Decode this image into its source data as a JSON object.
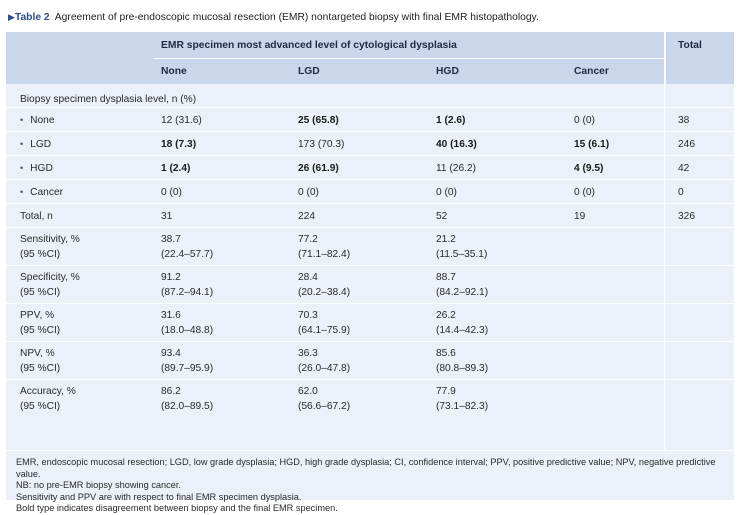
{
  "caption": {
    "marker": "▶",
    "label": "Table 2",
    "text": "Agreement of pre-endoscopic mucosal resection (EMR) nontargeted biopsy with final EMR histopathology."
  },
  "header": {
    "group_title": "EMR specimen most advanced level of cytological dysplasia",
    "total": "Total",
    "columns": [
      "None",
      "LGD",
      "HGD",
      "Cancer"
    ]
  },
  "section_label": "Biopsy specimen dysplasia level, n (%)",
  "rows": [
    {
      "label": "None",
      "bullet": true,
      "cells": [
        {
          "t": "12 (31.6)",
          "b": false
        },
        {
          "t": "25 (65.8)",
          "b": true
        },
        {
          "t": "1 (2.6)",
          "b": true
        },
        {
          "t": "0 (0)",
          "b": false
        },
        {
          "t": "38",
          "b": false
        }
      ]
    },
    {
      "label": "LGD",
      "bullet": true,
      "cells": [
        {
          "t": "18 (7.3)",
          "b": true
        },
        {
          "t": "173 (70.3)",
          "b": false
        },
        {
          "t": "40 (16.3)",
          "b": true
        },
        {
          "t": "15 (6.1)",
          "b": true
        },
        {
          "t": "246",
          "b": false
        }
      ]
    },
    {
      "label": "HGD",
      "bullet": true,
      "cells": [
        {
          "t": "1 (2.4)",
          "b": true
        },
        {
          "t": "26 (61.9)",
          "b": true
        },
        {
          "t": "11 (26.2)",
          "b": false
        },
        {
          "t": "4 (9.5)",
          "b": true
        },
        {
          "t": "42",
          "b": false
        }
      ]
    },
    {
      "label": "Cancer",
      "bullet": true,
      "cells": [
        {
          "t": "0 (0)",
          "b": false
        },
        {
          "t": "0 (0)",
          "b": false
        },
        {
          "t": "0 (0)",
          "b": false
        },
        {
          "t": "0 (0)",
          "b": false
        },
        {
          "t": "0",
          "b": false
        }
      ]
    },
    {
      "label": "Total, n",
      "bullet": false,
      "cells": [
        {
          "t": "31",
          "b": false
        },
        {
          "t": "224",
          "b": false
        },
        {
          "t": "52",
          "b": false
        },
        {
          "t": "19",
          "b": false
        },
        {
          "t": "326",
          "b": false
        }
      ]
    }
  ],
  "metrics": [
    {
      "label": "Sensitivity, %",
      "sub": "(95 %CI)",
      "values": [
        "38.7",
        "77.2",
        "21.2"
      ],
      "ci": [
        "(22.4–57.7)",
        "(71.1–82.4)",
        "(11.5–35.1)"
      ]
    },
    {
      "label": "Specificity, %",
      "sub": "(95 %CI)",
      "values": [
        "91.2",
        "28.4",
        "88.7"
      ],
      "ci": [
        "(87.2–94.1)",
        "(20.2–38.4)",
        "(84.2–92.1)"
      ]
    },
    {
      "label": "PPV, %",
      "sub": "(95 %CI)",
      "values": [
        "31.6",
        "70.3",
        "26.2"
      ],
      "ci": [
        "(18.0–48.8)",
        "(64.1–75.9)",
        "(14.4–42.3)"
      ]
    },
    {
      "label": "NPV, %",
      "sub": "(95 %CI)",
      "values": [
        "93.4",
        "36.3",
        "85.6"
      ],
      "ci": [
        "(89.7–95.9)",
        "(26.0–47.8)",
        "(80.8–89.3)"
      ]
    },
    {
      "label": "Accuracy, %",
      "sub": "(95 %CI)",
      "values": [
        "86.2",
        "62.0",
        "77.9"
      ],
      "ci": [
        "(82.0–89.5)",
        "(56.6–67.2)",
        "(73.1–82.3)"
      ]
    }
  ],
  "footnotes": [
    "EMR, endoscopic mucosal resection; LGD, low grade dysplasia; HGD, high grade dysplasia; CI, confidence interval; PPV, positive predictive value; NPV, negative predictive value.",
    "NB: no pre-EMR biopsy showing cancer.",
    "Sensitivity and PPV are with respect to final EMR specimen dysplasia.",
    "Bold type indicates disagreement between biopsy and the final EMR specimen."
  ],
  "colors": {
    "header_bg": "#cad6eb",
    "body_bg": "#ecf0f8",
    "accent": "#2c4f8a"
  }
}
